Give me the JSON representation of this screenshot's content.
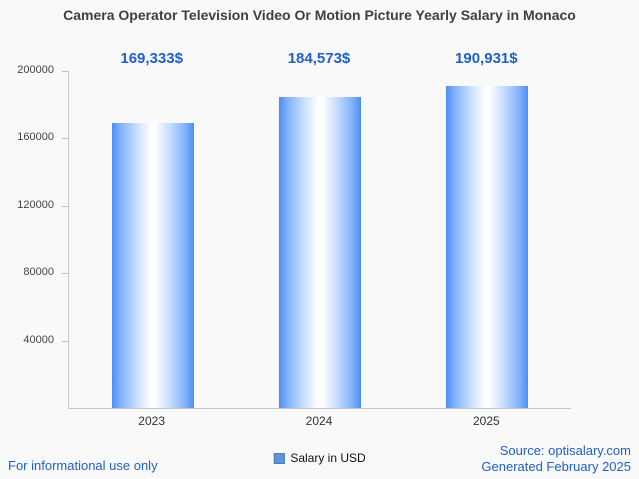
{
  "title": "Camera Operator Television Video Or Motion Picture Yearly Salary in Monaco",
  "chart_data": {
    "type": "bar",
    "title": "Camera Operator Television Video Or Motion Picture Yearly Salary in Monaco",
    "categories": [
      "2023",
      "2024",
      "2025"
    ],
    "values": [
      169333,
      184573,
      190931
    ],
    "value_labels": [
      "169,333$",
      "184,573$",
      "190,931$"
    ],
    "xlabel": "",
    "ylabel": "",
    "ylim": [
      0,
      200000
    ],
    "yticks": [
      40000,
      80000,
      120000,
      160000,
      200000
    ],
    "ytick_labels": [
      "40000",
      "80000",
      "120000",
      "160000",
      "200000"
    ],
    "grid": false,
    "legend_position": "bottom-center",
    "legend": [
      {
        "label": "Salary in USD",
        "color": "#6095dd"
      }
    ],
    "colors": {
      "bar_edge": "#4b8df5",
      "bar_mid": "#fcfeff",
      "value_label": "#2060c8",
      "axis": "#c9c9c9",
      "title_text": "#3f3f3f",
      "footer_link": "#2060c8",
      "background": "#f9f9f9"
    }
  },
  "legend": {
    "label": "Salary in USD"
  },
  "footer": {
    "left": "For informational use only",
    "source": "Source: optisalary.com",
    "generated": "Generated February 2025"
  }
}
